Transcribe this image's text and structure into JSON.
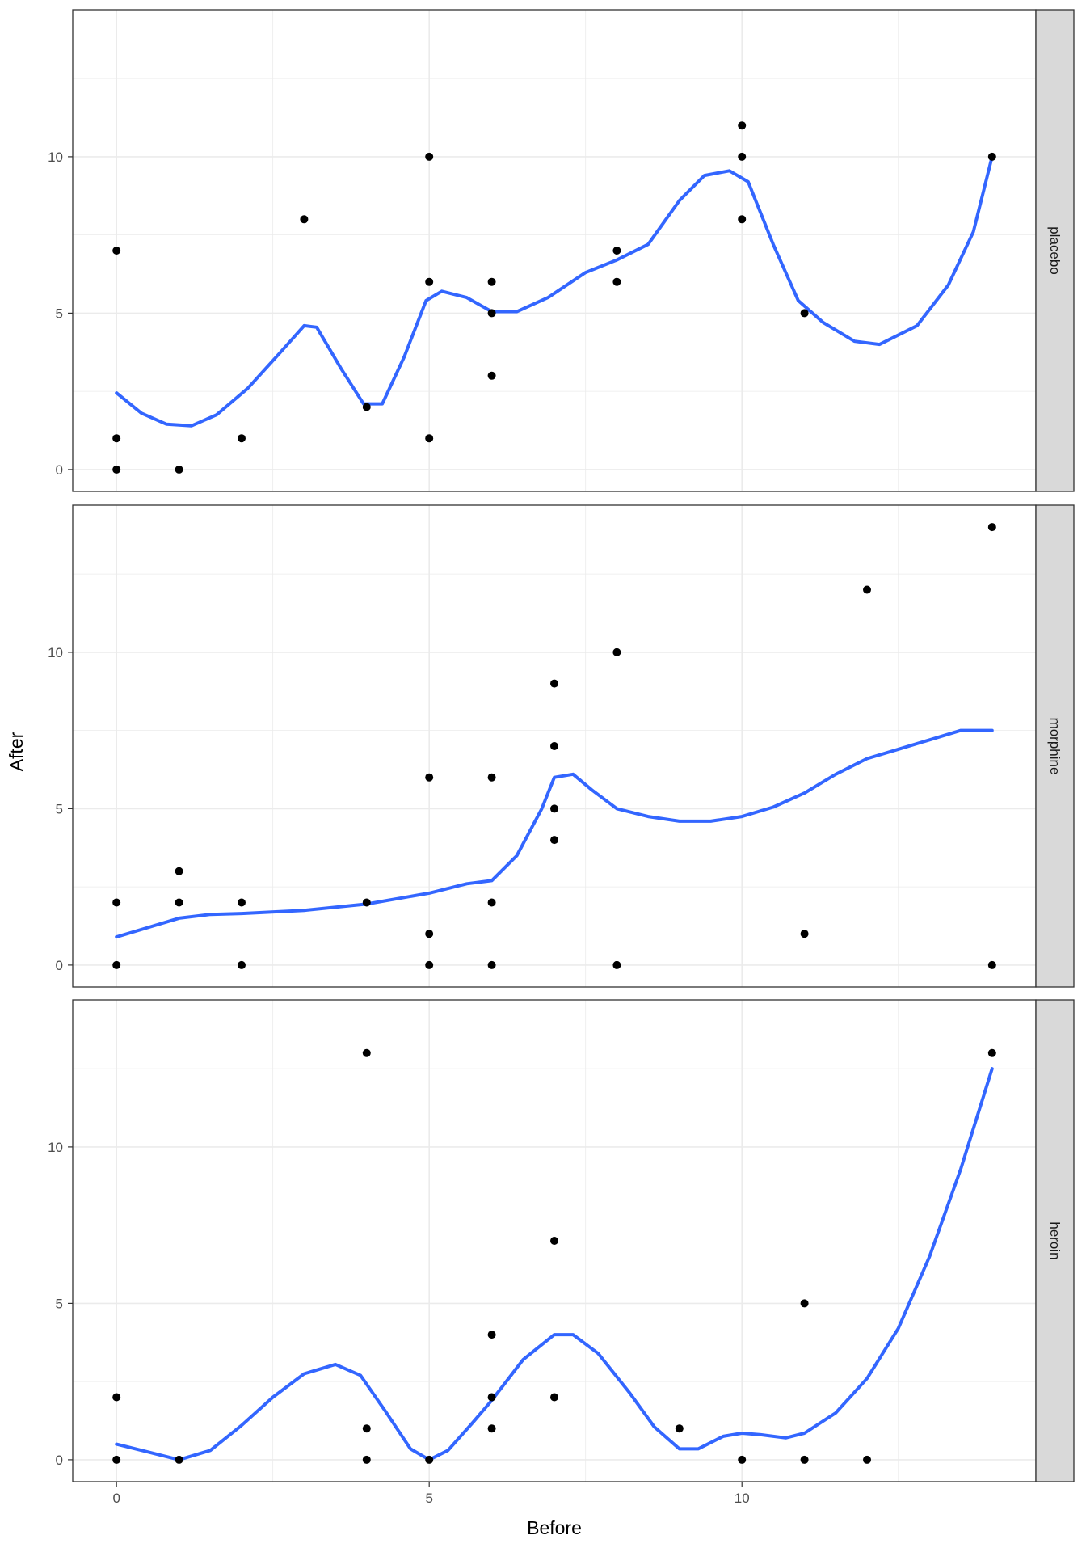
{
  "chart_data": {
    "type": "scatter",
    "facet_layout": "stacked-rows",
    "xlabel": "Before",
    "ylabel": "After",
    "xlim": [
      -0.7,
      14.7
    ],
    "ylim": [
      -0.7,
      14.7
    ],
    "x_ticks": [
      0,
      5,
      10
    ],
    "y_ticks": [
      0,
      5,
      10
    ],
    "x_tick_labels": [
      "0",
      "5",
      "10"
    ],
    "y_tick_labels": [
      "0",
      "5",
      "10"
    ],
    "grid": true,
    "colors": {
      "smooth": "#3366ff",
      "points": "#000000",
      "strip_bg": "#d9d9d9",
      "grid": "#ebebeb",
      "panel_border": "#333333"
    },
    "panels": [
      {
        "label": "placebo",
        "points": [
          [
            0,
            7
          ],
          [
            0,
            1
          ],
          [
            0,
            0
          ],
          [
            1,
            0
          ],
          [
            2,
            1
          ],
          [
            3,
            8
          ],
          [
            4,
            2
          ],
          [
            5,
            10
          ],
          [
            5,
            6
          ],
          [
            5,
            1
          ],
          [
            6,
            6
          ],
          [
            6,
            5
          ],
          [
            6,
            3
          ],
          [
            8,
            7
          ],
          [
            8,
            6
          ],
          [
            10,
            11
          ],
          [
            10,
            10
          ],
          [
            10,
            8
          ],
          [
            11,
            5
          ],
          [
            14,
            10
          ]
        ],
        "smooth": [
          [
            0,
            2.45
          ],
          [
            0.4,
            1.8
          ],
          [
            0.8,
            1.45
          ],
          [
            1.2,
            1.4
          ],
          [
            1.6,
            1.75
          ],
          [
            2.1,
            2.6
          ],
          [
            2.6,
            3.7
          ],
          [
            3,
            4.6
          ],
          [
            3.2,
            4.55
          ],
          [
            3.6,
            3.2
          ],
          [
            3.95,
            2.1
          ],
          [
            4.25,
            2.1
          ],
          [
            4.6,
            3.6
          ],
          [
            4.95,
            5.4
          ],
          [
            5.2,
            5.7
          ],
          [
            5.6,
            5.5
          ],
          [
            6,
            5.05
          ],
          [
            6.4,
            5.05
          ],
          [
            6.9,
            5.5
          ],
          [
            7.5,
            6.3
          ],
          [
            8,
            6.7
          ],
          [
            8.5,
            7.2
          ],
          [
            9,
            8.6
          ],
          [
            9.4,
            9.4
          ],
          [
            9.8,
            9.55
          ],
          [
            10.1,
            9.2
          ],
          [
            10.5,
            7.2
          ],
          [
            10.9,
            5.4
          ],
          [
            11.3,
            4.7
          ],
          [
            11.8,
            4.1
          ],
          [
            12.2,
            4
          ],
          [
            12.8,
            4.6
          ],
          [
            13.3,
            5.9
          ],
          [
            13.7,
            7.6
          ],
          [
            14,
            10
          ]
        ]
      },
      {
        "label": "morphine",
        "points": [
          [
            0,
            2
          ],
          [
            0,
            0
          ],
          [
            1,
            3
          ],
          [
            1,
            2
          ],
          [
            2,
            2
          ],
          [
            2,
            0
          ],
          [
            4,
            2
          ],
          [
            5,
            6
          ],
          [
            5,
            1
          ],
          [
            5,
            0
          ],
          [
            6,
            6
          ],
          [
            6,
            2
          ],
          [
            6,
            0
          ],
          [
            7,
            9
          ],
          [
            7,
            7
          ],
          [
            7,
            5
          ],
          [
            7,
            4
          ],
          [
            8,
            10
          ],
          [
            8,
            0
          ],
          [
            11,
            1
          ],
          [
            12,
            12
          ],
          [
            14,
            14
          ],
          [
            14,
            0
          ]
        ],
        "smooth": [
          [
            0,
            0.9
          ],
          [
            0.5,
            1.2
          ],
          [
            1,
            1.5
          ],
          [
            1.5,
            1.62
          ],
          [
            2,
            1.65
          ],
          [
            3,
            1.75
          ],
          [
            4,
            1.95
          ],
          [
            5,
            2.3
          ],
          [
            5.6,
            2.6
          ],
          [
            6,
            2.7
          ],
          [
            6.4,
            3.5
          ],
          [
            6.8,
            5
          ],
          [
            7,
            6
          ],
          [
            7.3,
            6.1
          ],
          [
            7.6,
            5.6
          ],
          [
            8,
            5
          ],
          [
            8.5,
            4.75
          ],
          [
            9,
            4.6
          ],
          [
            9.5,
            4.6
          ],
          [
            10,
            4.75
          ],
          [
            10.5,
            5.05
          ],
          [
            11,
            5.5
          ],
          [
            11.5,
            6.1
          ],
          [
            12,
            6.6
          ],
          [
            12.5,
            6.9
          ],
          [
            13,
            7.2
          ],
          [
            13.5,
            7.5
          ],
          [
            14,
            7.5
          ]
        ]
      },
      {
        "label": "heroin",
        "points": [
          [
            0,
            2
          ],
          [
            0,
            0
          ],
          [
            1,
            0
          ],
          [
            4,
            13
          ],
          [
            4,
            1
          ],
          [
            4,
            0
          ],
          [
            5,
            0
          ],
          [
            6,
            4
          ],
          [
            6,
            2
          ],
          [
            6,
            1
          ],
          [
            7,
            7
          ],
          [
            7,
            2
          ],
          [
            9,
            1
          ],
          [
            10,
            0
          ],
          [
            11,
            5
          ],
          [
            11,
            0
          ],
          [
            12,
            0
          ],
          [
            14,
            13
          ]
        ],
        "smooth": [
          [
            0,
            0.5
          ],
          [
            0.5,
            0.25
          ],
          [
            1,
            0
          ],
          [
            1.5,
            0.3
          ],
          [
            2,
            1.1
          ],
          [
            2.5,
            2
          ],
          [
            3,
            2.75
          ],
          [
            3.5,
            3.05
          ],
          [
            3.9,
            2.7
          ],
          [
            4.3,
            1.55
          ],
          [
            4.7,
            0.35
          ],
          [
            5,
            0
          ],
          [
            5.3,
            0.3
          ],
          [
            5.7,
            1.2
          ],
          [
            6,
            1.9
          ],
          [
            6.5,
            3.2
          ],
          [
            7,
            4
          ],
          [
            7.3,
            4
          ],
          [
            7.7,
            3.4
          ],
          [
            8.2,
            2.15
          ],
          [
            8.6,
            1.05
          ],
          [
            9,
            0.35
          ],
          [
            9.3,
            0.35
          ],
          [
            9.7,
            0.75
          ],
          [
            10,
            0.85
          ],
          [
            10.3,
            0.8
          ],
          [
            10.7,
            0.7
          ],
          [
            11,
            0.85
          ],
          [
            11.5,
            1.5
          ],
          [
            12,
            2.6
          ],
          [
            12.5,
            4.2
          ],
          [
            13,
            6.5
          ],
          [
            13.5,
            9.3
          ],
          [
            14,
            12.5
          ]
        ]
      }
    ]
  }
}
